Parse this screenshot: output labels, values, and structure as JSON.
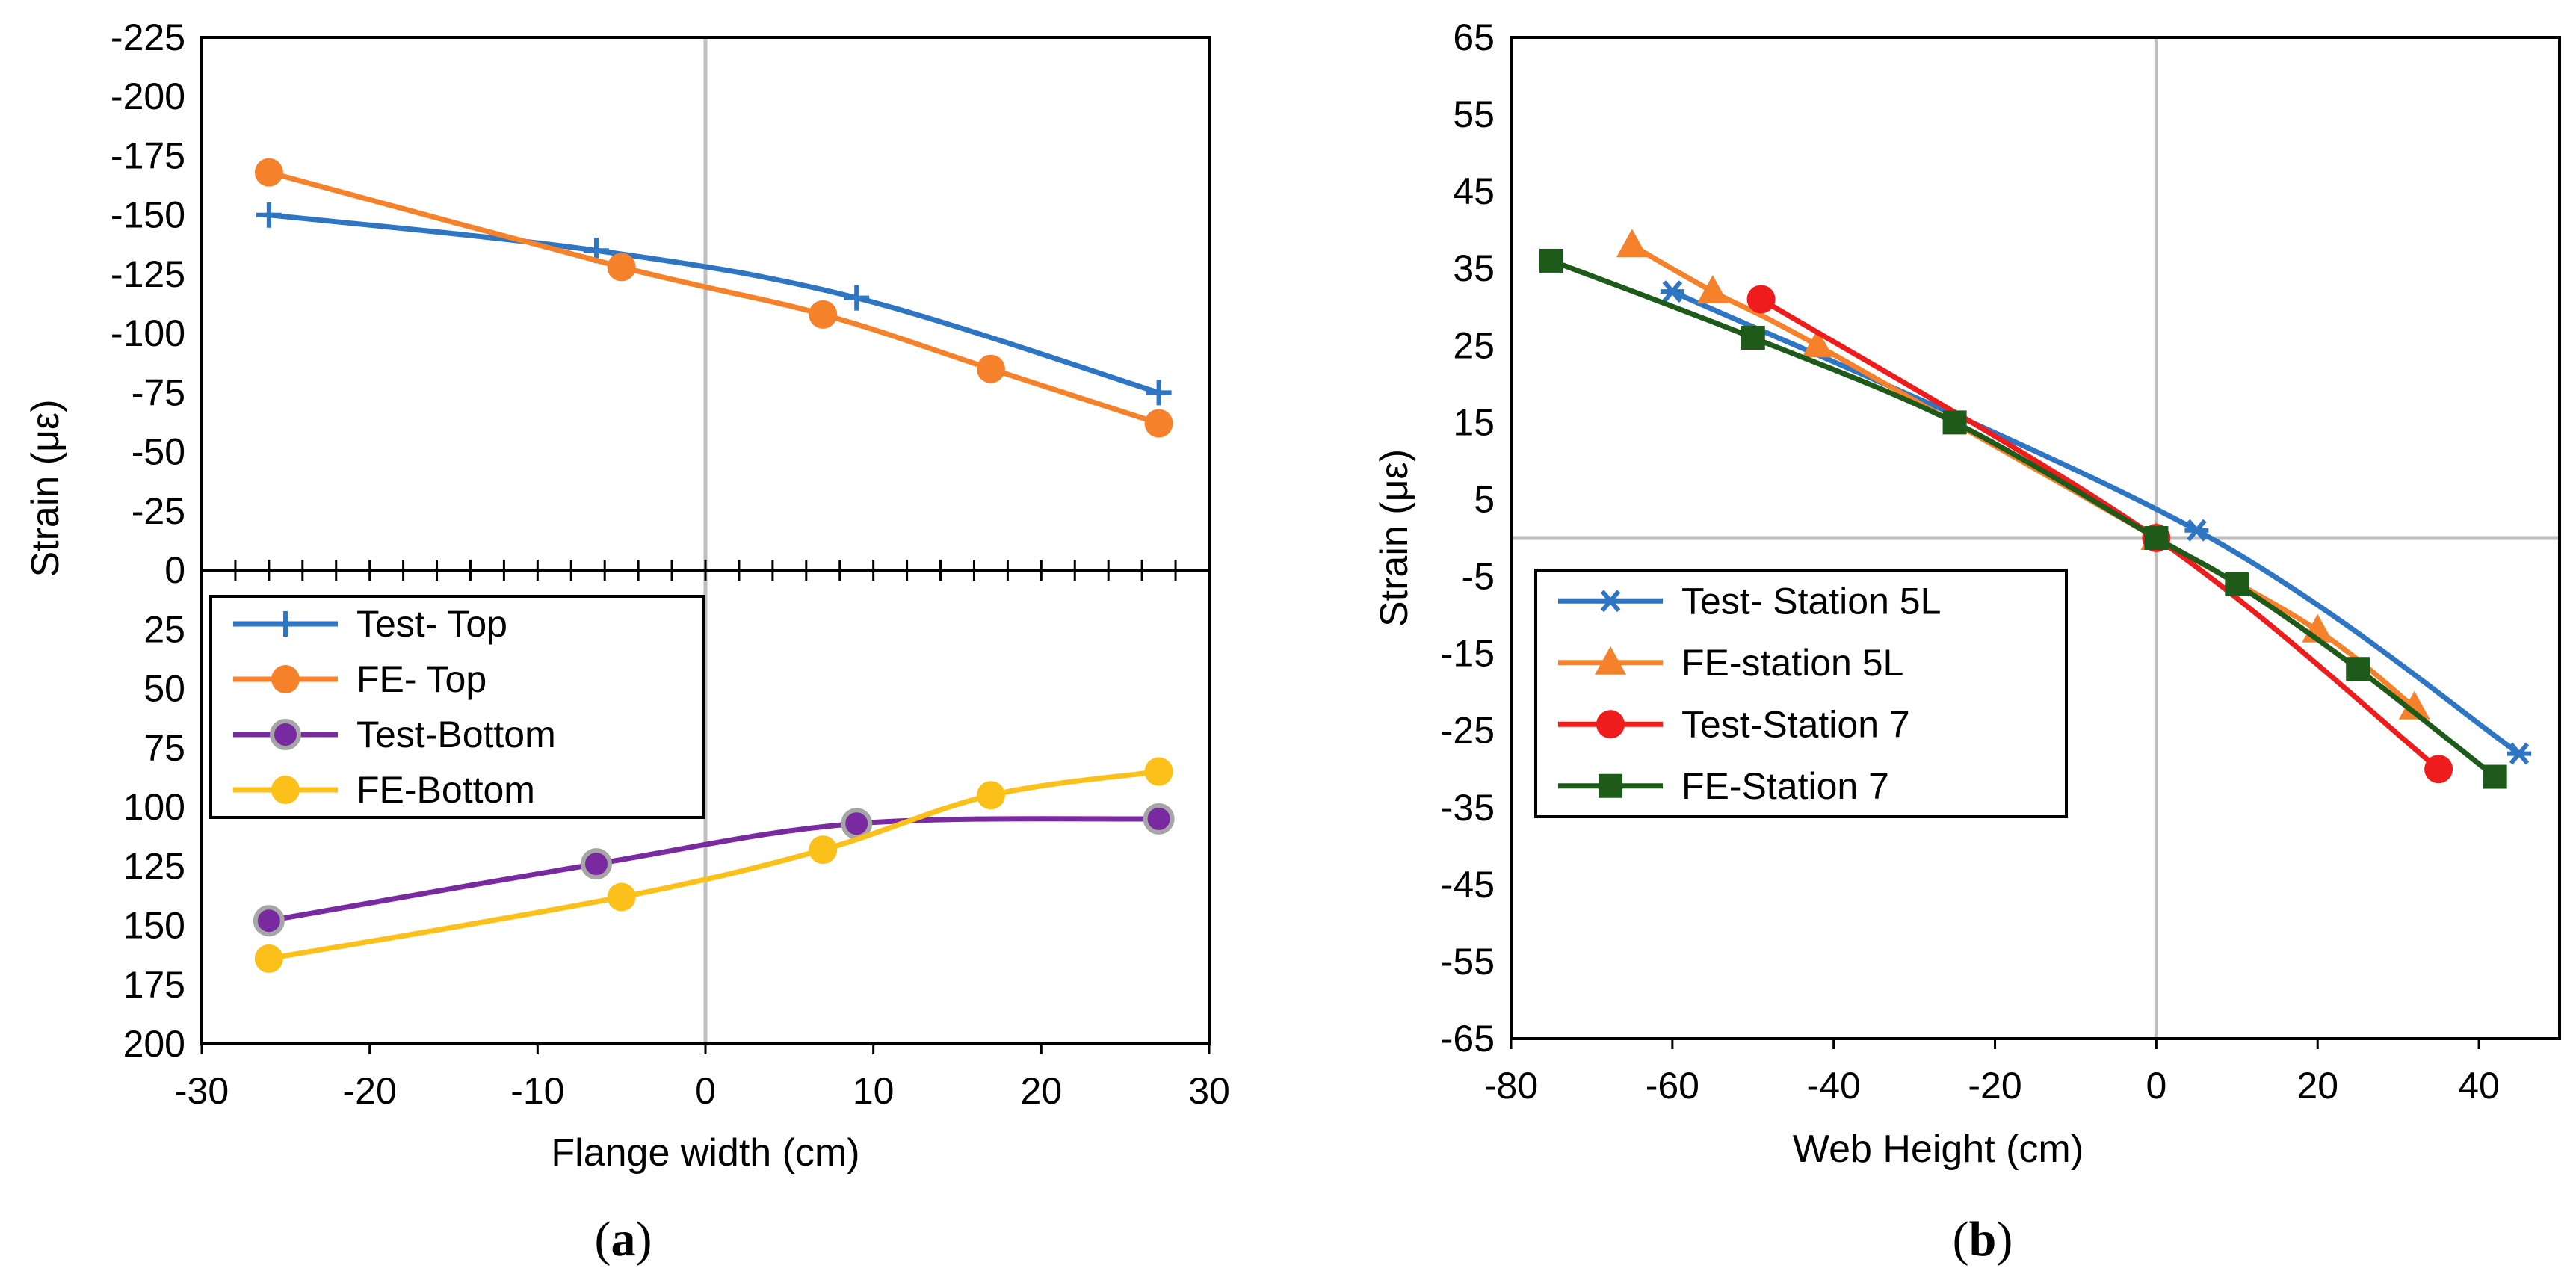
{
  "chart_data": [
    {
      "type": "line",
      "panel_label": "a",
      "xlabel": "Flange width (cm)",
      "ylabel": "Strain (με)",
      "xlim": [
        -30,
        30
      ],
      "ylim": [
        -225,
        200
      ],
      "y_reversed": true,
      "x_ticks": [
        "-30",
        "-20",
        "-10",
        "0",
        "10",
        "20",
        "30"
      ],
      "y_ticks": [
        "-225",
        "-200",
        "-175",
        "-150",
        "-125",
        "-100",
        "-75",
        "-50",
        "-25",
        "0",
        "25",
        "50",
        "75",
        "100",
        "125",
        "150",
        "175",
        "200"
      ],
      "legend_position": "center-left",
      "series": [
        {
          "name": "Test- Top",
          "color": "#2e75c4",
          "marker": "plus",
          "x": [
            -26,
            -6.5,
            9,
            27
          ],
          "y": [
            -150,
            -135,
            -115,
            -75
          ]
        },
        {
          "name": "FE- Top",
          "color": "#f5822a",
          "marker": "circle",
          "x": [
            -26,
            -5,
            7,
            17,
            27
          ],
          "y": [
            -168,
            -128,
            -108,
            -85,
            -62
          ]
        },
        {
          "name": "Test-Bottom",
          "color": "#7a2aa0",
          "marker": "circle-outlined",
          "x": [
            -26,
            -6.5,
            9,
            27
          ],
          "y": [
            148,
            124,
            107,
            105
          ]
        },
        {
          "name": "FE-Bottom",
          "color": "#fbc01a",
          "marker": "circle",
          "x": [
            -26,
            -5,
            7,
            17,
            27
          ],
          "y": [
            164,
            138,
            118,
            95,
            85
          ]
        }
      ]
    },
    {
      "type": "line",
      "panel_label": "b",
      "xlabel": "Web Height (cm)",
      "ylabel": "Strain (με)",
      "xlim": [
        -80,
        50
      ],
      "ylim": [
        -65,
        65
      ],
      "x_ticks": [
        "-80",
        "-60",
        "-40",
        "-20",
        "0",
        "20",
        "40"
      ],
      "y_ticks": [
        "65",
        "55",
        "45",
        "35",
        "25",
        "15",
        "5",
        "-5",
        "-15",
        "-25",
        "-35",
        "-45",
        "-55",
        "-65"
      ],
      "legend_position": "center-left",
      "series": [
        {
          "name": "Test- Station 5L",
          "color": "#2e75c4",
          "marker": "star",
          "x": [
            -60,
            5,
            45
          ],
          "y": [
            32,
            1,
            -28
          ]
        },
        {
          "name": "FE-station 5L",
          "color": "#f5822a",
          "marker": "triangle",
          "x": [
            -65,
            -55,
            -42,
            0,
            20,
            32
          ],
          "y": [
            38,
            32,
            25,
            0,
            -12,
            -22
          ]
        },
        {
          "name": "Test-Station 7",
          "color": "#ee1c1c",
          "marker": "circle",
          "x": [
            -49,
            0,
            35
          ],
          "y": [
            31,
            0,
            -30
          ]
        },
        {
          "name": "FE-Station 7",
          "color": "#1e5a1a",
          "marker": "square",
          "x": [
            -75,
            -50,
            -25,
            0,
            10,
            25,
            42
          ],
          "y": [
            36,
            26,
            15,
            0,
            -6,
            -17,
            -31
          ]
        }
      ]
    }
  ]
}
